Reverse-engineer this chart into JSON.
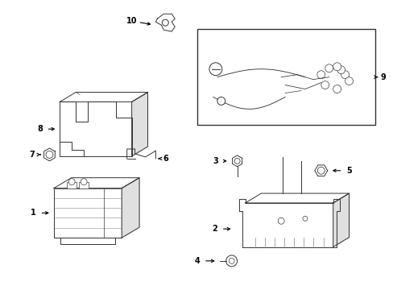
{
  "background_color": "#ffffff",
  "line_color": "#333333",
  "fig_width": 4.89,
  "fig_height": 3.6,
  "dpi": 100,
  "font_size": 7.0,
  "lw": 0.7
}
